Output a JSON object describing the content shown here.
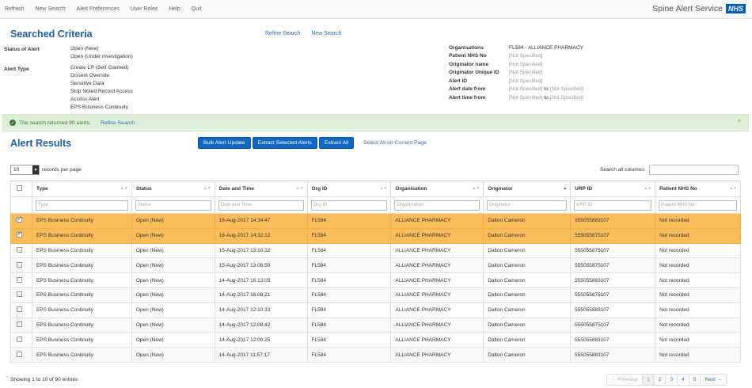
{
  "nav": {
    "items": [
      "Refresh",
      "New Search",
      "Alert Preferences",
      "User Roles",
      "Help",
      "Quit"
    ],
    "brand": "Spine Alert Service",
    "logo": "NHS"
  },
  "criteria": {
    "title": "Searched Criteria",
    "refine_link": "Refine Search",
    "new_search_link": "New Search",
    "status_label": "Status of Alert",
    "status_values": [
      "Open (New)",
      "Open (Under investigation)"
    ],
    "type_label": "Alert Type",
    "type_values": [
      "Create LR (Self Claimed)",
      "Dissent Override",
      "Sensitive Data",
      "Stop Noted Record Access",
      "Access Alert",
      "EPS Business Continuity"
    ],
    "organisations_label": "Organisations",
    "organisations_value": "FL584 - ALLIANCE PHARMACY",
    "nhs_no_label": "Patient NHS No",
    "originator_name_label": "Originator name",
    "originator_uid_label": "Originator Unique ID",
    "alert_id_label": "Alert ID",
    "date_from_label": "Alert date from",
    "time_from_label": "Alert time from",
    "not_specified": "[Not Specified]",
    "to": "to"
  },
  "banner": {
    "text": "The search returned 90 alerts.",
    "link": "Refine Search",
    "close": "×"
  },
  "results": {
    "title": "Alert Results",
    "bulk_button": "Bulk Alert Update",
    "extract_selected_button": "Extract Selected Alerts",
    "extract_all_button": "Extract All",
    "select_all_link": "Select All on Current Page",
    "page_length": "10",
    "page_length_label": "records per page",
    "search_label": "Search all columns:"
  },
  "table": {
    "headers": [
      "Type",
      "Status",
      "Date and Time",
      "Org ID",
      "Organisation",
      "Originator",
      "URP ID",
      "Patient NHS No"
    ],
    "filters": [
      "Type",
      "Status",
      "Date and Time",
      "Org ID",
      "Organisation",
      "Originator",
      "URP ID",
      "Patient NHS No"
    ],
    "rows": [
      {
        "selected": true,
        "cells": [
          "EPS Business Continuity",
          "Open (New)",
          "16-Aug-2017 14:34:47",
          "FL584",
          "ALLIANCE PHARMACY",
          "Dalton Cameron",
          "555055883107",
          "Not recorded"
        ]
      },
      {
        "selected": true,
        "cells": [
          "EPS Business Continuity",
          "Open (New)",
          "16-Aug-2017 14:32:12",
          "FL584",
          "ALLIANCE PHARMACY",
          "Dalton Cameron",
          "555055875107",
          "Not recorded"
        ]
      },
      {
        "selected": false,
        "cells": [
          "EPS Business Continuity",
          "Open (New)",
          "15-Aug-2017 13:10:32",
          "FL584",
          "ALLIANCE PHARMACY",
          "Dalton Cameron",
          "555055875107",
          "Not recorded"
        ]
      },
      {
        "selected": false,
        "cells": [
          "EPS Business Continuity",
          "Open (New)",
          "15-Aug-2017 13:06:50",
          "FL584",
          "ALLIANCE PHARMACY",
          "Dalton Cameron",
          "555055875107",
          "Not recorded"
        ]
      },
      {
        "selected": false,
        "cells": [
          "EPS Business Continuity",
          "Open (New)",
          "14-Aug-2017 16:13:05",
          "FL584",
          "ALLIANCE PHARMACY",
          "Dalton Cameron",
          "555055883107",
          "Not recorded"
        ]
      },
      {
        "selected": false,
        "cells": [
          "EPS Business Continuity",
          "Open (New)",
          "14-Aug-2017 16:08:21",
          "FL584",
          "ALLIANCE PHARMACY",
          "Dalton Cameron",
          "555055875107",
          "Not recorded"
        ]
      },
      {
        "selected": false,
        "cells": [
          "EPS Business Continuity",
          "Open (New)",
          "14-Aug-2017 12:10:33",
          "FL584",
          "ALLIANCE PHARMACY",
          "Dalton Cameron",
          "555055883107",
          "Not recorded"
        ]
      },
      {
        "selected": false,
        "cells": [
          "EPS Business Continuity",
          "Open (New)",
          "14-Aug-2017 12:08:42",
          "FL584",
          "ALLIANCE PHARMACY",
          "Dalton Cameron",
          "555055875107",
          "Not recorded"
        ]
      },
      {
        "selected": false,
        "cells": [
          "EPS Business Continuity",
          "Open (New)",
          "14-Aug-2017 12:00:25",
          "FL584",
          "ALLIANCE PHARMACY",
          "Dalton Cameron",
          "555055883107",
          "Not recorded"
        ]
      },
      {
        "selected": false,
        "cells": [
          "EPS Business Continuity",
          "Open (New)",
          "14-Aug-2017 11:57:17",
          "FL584",
          "ALLIANCE PHARMACY",
          "Dalton Cameron",
          "555055883107",
          "Not recorded"
        ]
      }
    ]
  },
  "footer": {
    "info": "Showing 1 to 10 of 90 entries",
    "pages": [
      "← Previous",
      "1",
      "2",
      "3",
      "4",
      "5",
      "Next →"
    ]
  },
  "colors": {
    "accent": "#1f5f9e",
    "button": "#1167c6",
    "selected_row": "#fbbd5a",
    "success_bg": "#dff0d8",
    "nhs_blue": "#005eb8"
  }
}
